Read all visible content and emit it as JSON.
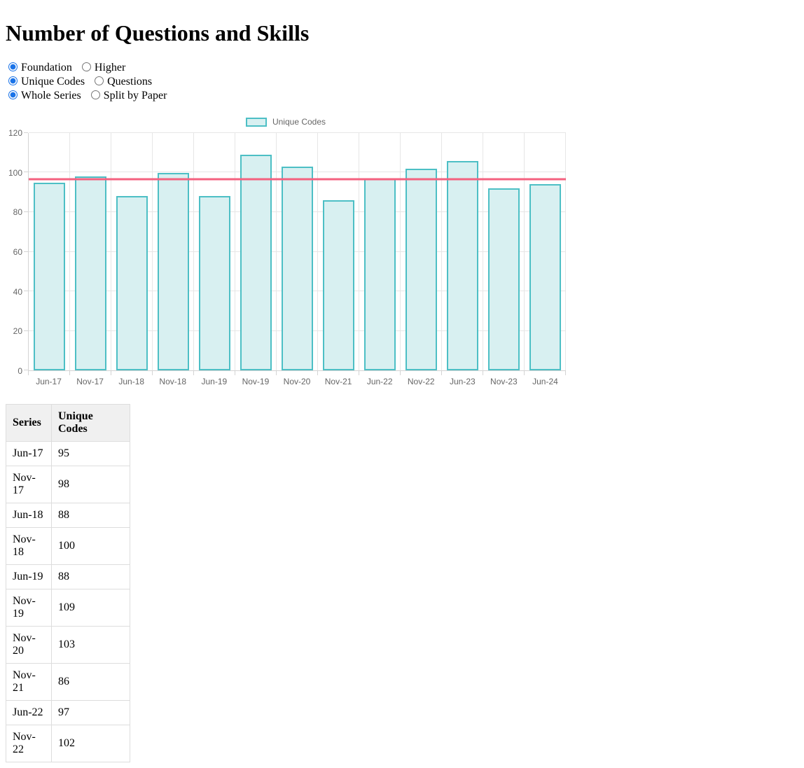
{
  "title": "Number of Questions and Skills",
  "controls": {
    "groups": [
      {
        "name": "tier",
        "options": [
          {
            "label": "Foundation",
            "selected": true
          },
          {
            "label": "Higher",
            "selected": false
          }
        ]
      },
      {
        "name": "metric",
        "options": [
          {
            "label": "Unique Codes",
            "selected": true
          },
          {
            "label": "Questions",
            "selected": false
          }
        ]
      },
      {
        "name": "series-mode",
        "options": [
          {
            "label": "Whole Series",
            "selected": true
          },
          {
            "label": "Split by Paper",
            "selected": false
          }
        ]
      }
    ]
  },
  "chart_data": {
    "type": "bar",
    "title": "",
    "legend": "Unique Codes",
    "legend_position": "top",
    "categories": [
      "Jun-17",
      "Nov-17",
      "Jun-18",
      "Nov-18",
      "Jun-19",
      "Nov-19",
      "Nov-20",
      "Nov-21",
      "Jun-22",
      "Nov-22",
      "Jun-23",
      "Nov-23",
      "Jun-24"
    ],
    "values": [
      95,
      98,
      88,
      100,
      88,
      109,
      103,
      86,
      97,
      102,
      106,
      92,
      94
    ],
    "xlabel": "",
    "ylabel": "",
    "ylim": [
      0,
      120
    ],
    "yticks": [
      0,
      20,
      40,
      60,
      80,
      100,
      120
    ],
    "grid": true,
    "average_line": 96.8,
    "colors": {
      "bar_fill": "#d8f0f1",
      "bar_border": "#4dbfc5",
      "average_line": "#f4617f",
      "gridline": "#e6e6e6",
      "axis": "#d4d4d4",
      "tick_text": "#666666"
    }
  },
  "table": {
    "columns": [
      "Series",
      "Unique Codes"
    ],
    "rows": [
      [
        "Jun-17",
        "95"
      ],
      [
        "Nov-17",
        "98"
      ],
      [
        "Jun-18",
        "88"
      ],
      [
        "Nov-18",
        "100"
      ],
      [
        "Jun-19",
        "88"
      ],
      [
        "Nov-19",
        "109"
      ],
      [
        "Nov-20",
        "103"
      ],
      [
        "Nov-21",
        "86"
      ],
      [
        "Jun-22",
        "97"
      ],
      [
        "Nov-22",
        "102"
      ]
    ]
  }
}
